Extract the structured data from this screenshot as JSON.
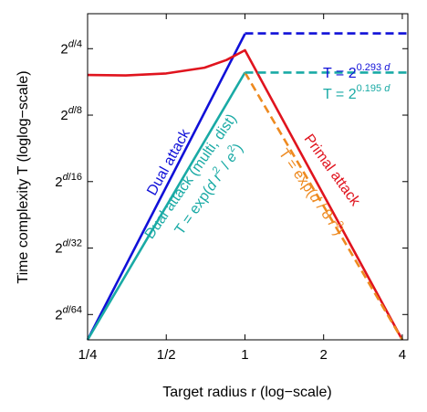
{
  "chart_data": {
    "type": "line",
    "xlabel": "Target radius r (log−scale)",
    "ylabel": "Time complexity T (loglog−scale)",
    "x_scale": "log",
    "y_scale": "loglog",
    "xlim": [
      0.25,
      4.2
    ],
    "ylim": [
      0.012,
      0.36
    ],
    "x_ticks": [
      {
        "value": 0.25,
        "label": "1/4"
      },
      {
        "value": 0.5,
        "label": "1/2"
      },
      {
        "value": 1,
        "label": "1"
      },
      {
        "value": 2,
        "label": "2"
      },
      {
        "value": 4,
        "label": "4"
      }
    ],
    "y_ticks": [
      {
        "value": 0.015625,
        "base": "2",
        "exp_num": "d",
        "exp_den": "/64"
      },
      {
        "value": 0.03125,
        "base": "2",
        "exp_num": "d",
        "exp_den": "/32"
      },
      {
        "value": 0.0625,
        "base": "2",
        "exp_num": "d",
        "exp_den": "/16"
      },
      {
        "value": 0.125,
        "base": "2",
        "exp_num": "d",
        "exp_den": "/8"
      },
      {
        "value": 0.25,
        "base": "2",
        "exp_num": "d",
        "exp_den": "/4"
      }
    ],
    "series": [
      {
        "name": "Dual attack",
        "color": "#1010d8",
        "style": "solid",
        "x": [
          0.25,
          1.0
        ],
        "y": [
          0.012,
          0.292
        ]
      },
      {
        "name": "Dual attack (multi, dist)",
        "color": "#19aaa5",
        "style": "solid",
        "x": [
          0.25,
          1.0
        ],
        "y": [
          0.012,
          0.195
        ]
      },
      {
        "name": "Primal attack",
        "color": "#e0141e",
        "style": "solid",
        "x": [
          0.25,
          0.35,
          0.5,
          0.7,
          0.85,
          0.95,
          1.0,
          4.0
        ],
        "y": [
          0.19,
          0.189,
          0.193,
          0.205,
          0.222,
          0.238,
          0.246,
          0.012
        ]
      },
      {
        "name": "T = exp(d / 8 r²)",
        "color": "#ee8a20",
        "style": "dashed",
        "x": [
          1.0,
          4.0
        ],
        "y": [
          0.195,
          0.012
        ]
      },
      {
        "name": "",
        "color": "#1010d8",
        "style": "dashed",
        "x": [
          1.0,
          4.2
        ],
        "y": [
          0.293,
          0.293
        ]
      },
      {
        "name": "",
        "color": "#19aaa5",
        "style": "dashed",
        "x": [
          1.0,
          4.2
        ],
        "y": [
          0.195,
          0.195
        ]
      }
    ],
    "annotations": {
      "dual": "Dual attack",
      "dual_multi": "Dual attack (multi, dist)",
      "dual_formula": {
        "pre": "T = exp(",
        "d": "d",
        "mid": " r",
        "sup": "2",
        "mid2": " / ",
        "e": "e",
        "sup2": "2",
        "post": ")"
      },
      "primal": "Primal attack",
      "primal_formula": {
        "pre": "T = exp(",
        "d": "d",
        "mid": " / 8 ",
        "r": "r",
        "sup": "2",
        "post": ")"
      },
      "blue_formula": {
        "pre": "T = 2",
        "sup": "0.293 ",
        "d": "d"
      },
      "teal_formula": {
        "pre": "T = 2",
        "sup": "0.195 ",
        "d": "d"
      }
    }
  }
}
